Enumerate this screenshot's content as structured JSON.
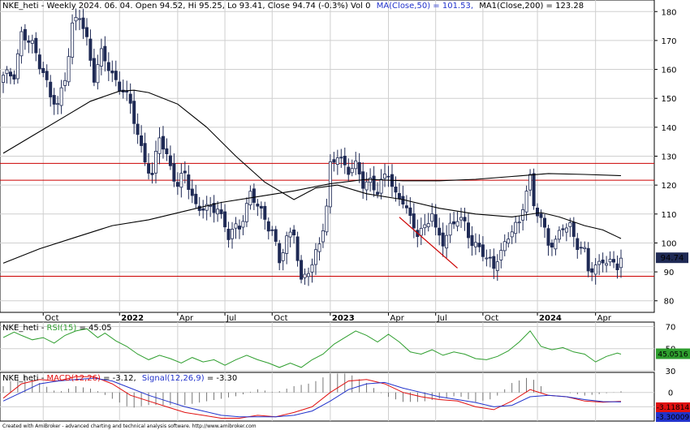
{
  "header": {
    "ticker_line": "NKE_heti - Weekly 2024. 06. 04. Open 94.52, Hi 95.25, Lo 93.41, Close 94.74 (-0.3%) Vol 0",
    "ma50_label": "MA(Close,50) = 101.53,",
    "ma200_label": "MA1(Close,200) = 123.28"
  },
  "rsi_header": {
    "prefix": "NKE_heti - ",
    "label": "RSI(15)",
    "value_text": " = 45.05"
  },
  "macd_header": {
    "prefix": "NKE_heti - ",
    "macd_label": "MACD(12,26)",
    "macd_value_text": " = -3.12,",
    "signal_label": "Signal(12,26,9)",
    "signal_value_text": " = -3.30"
  },
  "badges": {
    "price": "94.74",
    "rsi": "45.0516",
    "macd": "-3.11814",
    "signal": "-3.30009"
  },
  "credit": "Created with AmiBroker - advanced charting and technical analysis software. http://www.amibroker.com",
  "colors": {
    "up_body": "#ffffff",
    "down_body": "#1f2a55",
    "ma_line": "#000000",
    "support_resistance": "#cc0000",
    "rsi": "#2e9e2e",
    "macd": "#e01010",
    "signal": "#2233cc",
    "grid": "#cfcfcf"
  },
  "chart_data": [
    {
      "type": "candlestick",
      "y_ticks": [
        80,
        90,
        100,
        110,
        120,
        130,
        140,
        150,
        160,
        170,
        180
      ],
      "ylim": [
        76,
        184
      ],
      "grid": true,
      "x_labels": [
        "Oct",
        "2022",
        "Apr",
        "Jul",
        "Oct",
        "2023",
        "Apr",
        "Jul",
        "Oct",
        "2024",
        "Apr"
      ],
      "horizontal_lines": [
        127.5,
        121.7,
        88.5
      ],
      "trendline": {
        "from": [
          109,
          108.9
        ],
        "to": [
          125,
          91.3
        ]
      },
      "last_price": 94.74,
      "close_path": [
        [
          0,
          157
        ],
        [
          3,
          159
        ],
        [
          5,
          172
        ],
        [
          8,
          168
        ],
        [
          11,
          160
        ],
        [
          13,
          150
        ],
        [
          15,
          147
        ],
        [
          17,
          158
        ],
        [
          19,
          175
        ],
        [
          21,
          178
        ],
        [
          23,
          170
        ],
        [
          25,
          158
        ],
        [
          27,
          165
        ],
        [
          30,
          158
        ],
        [
          33,
          153
        ],
        [
          35,
          147
        ],
        [
          38,
          133
        ],
        [
          41,
          122
        ],
        [
          43,
          137
        ],
        [
          46,
          127
        ],
        [
          48,
          119
        ],
        [
          50,
          124
        ],
        [
          53,
          113
        ],
        [
          56,
          111
        ],
        [
          59,
          113
        ],
        [
          62,
          102
        ],
        [
          65,
          106
        ],
        [
          68,
          117
        ],
        [
          71,
          110
        ],
        [
          74,
          105
        ],
        [
          76,
          93
        ],
        [
          78,
          101
        ],
        [
          80,
          105
        ],
        [
          82,
          86
        ],
        [
          85,
          92
        ],
        [
          87,
          101
        ],
        [
          89,
          112
        ],
        [
          90,
          126
        ],
        [
          92,
          130
        ],
        [
          95,
          126
        ],
        [
          97,
          126
        ],
        [
          99,
          120
        ],
        [
          101,
          122
        ],
        [
          103,
          118
        ],
        [
          106,
          124
        ],
        [
          108,
          117
        ],
        [
          110,
          115
        ],
        [
          112,
          107
        ],
        [
          114,
          104
        ],
        [
          116,
          106
        ],
        [
          118,
          110
        ],
        [
          119,
          103
        ],
        [
          121,
          101
        ],
        [
          123,
          106
        ],
        [
          125,
          108
        ],
        [
          127,
          106
        ],
        [
          129,
          101
        ],
        [
          131,
          98
        ],
        [
          133,
          94
        ],
        [
          135,
          92
        ],
        [
          136,
          96
        ],
        [
          138,
          99
        ],
        [
          140,
          104
        ],
        [
          142,
          107
        ],
        [
          143,
          114
        ],
        [
          144,
          119
        ],
        [
          145,
          122
        ],
        [
          146,
          112
        ],
        [
          148,
          108
        ],
        [
          150,
          101
        ],
        [
          152,
          100
        ],
        [
          154,
          105
        ],
        [
          156,
          106
        ],
        [
          158,
          100
        ],
        [
          160,
          96
        ],
        [
          161,
          90
        ],
        [
          163,
          92
        ],
        [
          165,
          95
        ],
        [
          167,
          92
        ],
        [
          169,
          92
        ],
        [
          170,
          94.74
        ]
      ],
      "series": [
        {
          "name": "MA(Close,50)",
          "points": [
            [
              0,
              131
            ],
            [
              8,
              137
            ],
            [
              16,
              143
            ],
            [
              24,
              149
            ],
            [
              32,
              152.5
            ],
            [
              36,
              152.8
            ],
            [
              40,
              152
            ],
            [
              48,
              148
            ],
            [
              56,
              140
            ],
            [
              64,
              130
            ],
            [
              72,
              121
            ],
            [
              80,
              115
            ],
            [
              86,
              119
            ],
            [
              92,
              120
            ],
            [
              100,
              117
            ],
            [
              110,
              115
            ],
            [
              120,
              112
            ],
            [
              130,
              110
            ],
            [
              140,
              109
            ],
            [
              148,
              110.5
            ],
            [
              153,
              109
            ],
            [
              160,
              106
            ],
            [
              165,
              104.5
            ],
            [
              170,
              101.53
            ]
          ]
        },
        {
          "name": "MA1(Close,200)",
          "points": [
            [
              0,
              93
            ],
            [
              10,
              98
            ],
            [
              20,
              102
            ],
            [
              30,
              106
            ],
            [
              40,
              108
            ],
            [
              50,
              111
            ],
            [
              60,
              114
            ],
            [
              70,
              116
            ],
            [
              80,
              118
            ],
            [
              90,
              120.5
            ],
            [
              100,
              122
            ],
            [
              110,
              121.5
            ],
            [
              120,
              121.5
            ],
            [
              130,
              122
            ],
            [
              140,
              123
            ],
            [
              150,
              124
            ],
            [
              160,
              123.7
            ],
            [
              170,
              123.28
            ]
          ]
        }
      ]
    },
    {
      "type": "line",
      "name": "RSI(15)",
      "y_ticks": [
        30,
        50,
        70
      ],
      "ylim": [
        30,
        74
      ],
      "last_value": 45.0516,
      "values": [
        [
          0,
          60
        ],
        [
          3,
          65
        ],
        [
          5,
          62
        ],
        [
          8,
          58
        ],
        [
          11,
          60
        ],
        [
          14,
          55
        ],
        [
          17,
          62
        ],
        [
          20,
          66
        ],
        [
          23,
          68
        ],
        [
          26,
          60
        ],
        [
          28,
          64
        ],
        [
          31,
          57
        ],
        [
          34,
          52
        ],
        [
          37,
          45
        ],
        [
          40,
          40
        ],
        [
          43,
          44
        ],
        [
          46,
          41
        ],
        [
          49,
          37
        ],
        [
          52,
          42
        ],
        [
          55,
          38
        ],
        [
          58,
          40
        ],
        [
          61,
          35
        ],
        [
          64,
          40
        ],
        [
          67,
          44
        ],
        [
          70,
          40
        ],
        [
          73,
          37
        ],
        [
          76,
          33
        ],
        [
          79,
          37
        ],
        [
          82,
          33
        ],
        [
          85,
          40
        ],
        [
          88,
          45
        ],
        [
          91,
          54
        ],
        [
          94,
          60
        ],
        [
          97,
          66
        ],
        [
          100,
          62
        ],
        [
          103,
          56
        ],
        [
          106,
          63
        ],
        [
          109,
          56
        ],
        [
          112,
          47
        ],
        [
          115,
          45
        ],
        [
          118,
          49
        ],
        [
          121,
          44
        ],
        [
          124,
          47
        ],
        [
          127,
          45
        ],
        [
          130,
          41
        ],
        [
          133,
          40
        ],
        [
          136,
          43
        ],
        [
          139,
          48
        ],
        [
          142,
          56
        ],
        [
          145,
          66
        ],
        [
          148,
          52
        ],
        [
          151,
          49
        ],
        [
          154,
          51
        ],
        [
          157,
          47
        ],
        [
          160,
          45
        ],
        [
          163,
          38
        ],
        [
          166,
          43
        ],
        [
          169,
          46
        ],
        [
          170,
          45.05
        ]
      ]
    },
    {
      "type": "line",
      "name": "MACD(12,26) / Signal(12,26,9)",
      "y_ticks": [
        0,
        -5
      ],
      "ylim": [
        -10,
        7
      ],
      "macd_last": -3.11814,
      "signal_last": -3.30009,
      "series": [
        {
          "name": "MACD(12,26)",
          "points": [
            [
              0,
              -2
            ],
            [
              5,
              3
            ],
            [
              10,
              4.5
            ],
            [
              15,
              4
            ],
            [
              20,
              5.5
            ],
            [
              25,
              5.5
            ],
            [
              30,
              3
            ],
            [
              35,
              -1
            ],
            [
              40,
              -3
            ],
            [
              45,
              -5
            ],
            [
              50,
              -7
            ],
            [
              55,
              -8
            ],
            [
              60,
              -9
            ],
            [
              65,
              -9
            ],
            [
              70,
              -8
            ],
            [
              75,
              -8.5
            ],
            [
              80,
              -7
            ],
            [
              85,
              -5
            ],
            [
              90,
              0
            ],
            [
              95,
              4
            ],
            [
              100,
              4.5
            ],
            [
              105,
              3
            ],
            [
              110,
              0
            ],
            [
              115,
              -1.5
            ],
            [
              120,
              -2.5
            ],
            [
              125,
              -3
            ],
            [
              130,
              -5
            ],
            [
              135,
              -6
            ],
            [
              140,
              -3
            ],
            [
              145,
              1
            ],
            [
              150,
              -1
            ],
            [
              155,
              -1.5
            ],
            [
              160,
              -3
            ],
            [
              165,
              -3.4
            ],
            [
              170,
              -3.12
            ]
          ]
        },
        {
          "name": "Signal(12,26,9)",
          "points": [
            [
              0,
              -3
            ],
            [
              5,
              0
            ],
            [
              10,
              3
            ],
            [
              15,
              4
            ],
            [
              20,
              4.5
            ],
            [
              25,
              5
            ],
            [
              30,
              4
            ],
            [
              35,
              1.5
            ],
            [
              40,
              -1
            ],
            [
              45,
              -3
            ],
            [
              50,
              -5
            ],
            [
              55,
              -6.5
            ],
            [
              60,
              -8
            ],
            [
              65,
              -8.5
            ],
            [
              70,
              -8.5
            ],
            [
              75,
              -8.5
            ],
            [
              80,
              -8
            ],
            [
              85,
              -6.5
            ],
            [
              90,
              -3
            ],
            [
              95,
              1
            ],
            [
              100,
              3
            ],
            [
              105,
              3.5
            ],
            [
              110,
              1.5
            ],
            [
              115,
              0
            ],
            [
              120,
              -1.5
            ],
            [
              125,
              -2.5
            ],
            [
              130,
              -3.5
            ],
            [
              135,
              -5
            ],
            [
              140,
              -4.5
            ],
            [
              145,
              -1.5
            ],
            [
              150,
              -1
            ],
            [
              155,
              -1.5
            ],
            [
              160,
              -2.5
            ],
            [
              165,
              -3.2
            ],
            [
              170,
              -3.3
            ]
          ]
        }
      ]
    }
  ]
}
